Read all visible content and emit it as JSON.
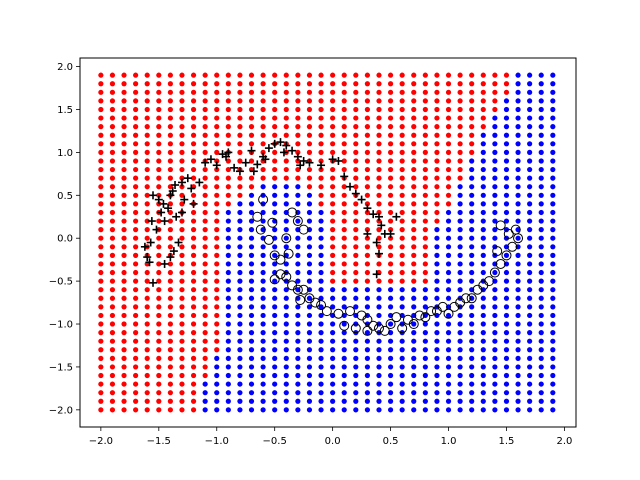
{
  "chart_data": {
    "type": "scatter",
    "title": "",
    "xlabel": "",
    "ylabel": "",
    "xlim": [
      -2.18,
      2.1
    ],
    "ylim": [
      -2.2,
      2.1
    ],
    "x_ticks": [
      -2.0,
      -1.5,
      -1.0,
      -0.5,
      0.0,
      0.5,
      1.0,
      1.5,
      2.0
    ],
    "y_ticks": [
      -2.0,
      -1.5,
      -1.0,
      -0.5,
      0.0,
      0.5,
      1.0,
      1.5,
      2.0
    ],
    "x_tick_labels": [
      "−2.0",
      "−1.5",
      "−1.0",
      "−0.5",
      "0.0",
      "0.5",
      "1.0",
      "1.5",
      "2.0"
    ],
    "y_tick_labels": [
      "−2.0",
      "−1.5",
      "−1.0",
      "−0.5",
      "0.0",
      "0.5",
      "1.0",
      "1.5",
      "2.0"
    ],
    "grid": {
      "x_start": -2.0,
      "x_end": 1.9,
      "x_step": 0.1,
      "y_start": -2.0,
      "y_end": 1.9,
      "y_step": 0.1,
      "class0_color": "#ff0000",
      "class1_color": "#0000ff",
      "boundary_thresholds": [
        {
          "x": -2.0,
          "y": -2.1
        },
        {
          "x": -1.9,
          "y": -2.1
        },
        {
          "x": -1.8,
          "y": -2.1
        },
        {
          "x": -1.7,
          "y": -2.1
        },
        {
          "x": -1.6,
          "y": -2.1
        },
        {
          "x": -1.5,
          "y": -2.1
        },
        {
          "x": -1.4,
          "y": -2.1
        },
        {
          "x": -1.3,
          "y": -2.1
        },
        {
          "x": -1.2,
          "y": -2.0
        },
        {
          "x": -1.1,
          "y": -1.6
        },
        {
          "x": -1.0,
          "y": -1.3
        },
        {
          "x": -0.9,
          "y": 0.4
        },
        {
          "x": -0.8,
          "y": 0.5
        },
        {
          "x": -0.7,
          "y": 0.6
        },
        {
          "x": -0.6,
          "y": 0.7
        },
        {
          "x": -0.5,
          "y": 0.7
        },
        {
          "x": -0.4,
          "y": 0.7
        },
        {
          "x": -0.3,
          "y": 0.7
        },
        {
          "x": -0.2,
          "y": 0.6
        },
        {
          "x": -0.1,
          "y": 0.4
        },
        {
          "x": 0.0,
          "y": -0.5
        },
        {
          "x": 0.1,
          "y": -0.5
        },
        {
          "x": 0.2,
          "y": -0.5
        },
        {
          "x": 0.3,
          "y": -0.5
        },
        {
          "x": 0.4,
          "y": -0.5
        },
        {
          "x": 0.5,
          "y": -0.5
        },
        {
          "x": 0.6,
          "y": -0.5
        },
        {
          "x": 0.7,
          "y": -0.5
        },
        {
          "x": 0.8,
          "y": -0.5
        },
        {
          "x": 0.9,
          "y": 0.2
        },
        {
          "x": 1.0,
          "y": 0.4
        },
        {
          "x": 1.1,
          "y": 0.7
        },
        {
          "x": 1.2,
          "y": 1.0
        },
        {
          "x": 1.3,
          "y": 1.3
        },
        {
          "x": 1.4,
          "y": 1.5
        },
        {
          "x": 1.5,
          "y": 1.7
        },
        {
          "x": 1.6,
          "y": 2.0
        },
        {
          "x": 1.7,
          "y": 2.0
        },
        {
          "x": 1.8,
          "y": 2.0
        },
        {
          "x": 1.9,
          "y": 2.0
        }
      ]
    },
    "series": [
      {
        "marker": "plus",
        "color": "#000000",
        "points": [
          [
            -1.55,
            -0.52
          ],
          [
            -1.58,
            -0.28
          ],
          [
            -1.6,
            -0.22
          ],
          [
            -1.62,
            -0.1
          ],
          [
            -1.57,
            -0.05
          ],
          [
            -1.52,
            0.1
          ],
          [
            -1.56,
            0.2
          ],
          [
            -1.48,
            0.3
          ],
          [
            -1.46,
            0.4
          ],
          [
            -1.4,
            0.5
          ],
          [
            -1.36,
            0.62
          ],
          [
            -1.38,
            0.55
          ],
          [
            -1.3,
            0.65
          ],
          [
            -1.25,
            0.7
          ],
          [
            -1.28,
            0.45
          ],
          [
            -1.22,
            0.58
          ],
          [
            -1.3,
            0.3
          ],
          [
            -1.35,
            0.25
          ],
          [
            -1.33,
            -0.05
          ],
          [
            -1.37,
            -0.15
          ],
          [
            -1.4,
            -0.22
          ],
          [
            -1.45,
            -0.3
          ],
          [
            -1.5,
            0.45
          ],
          [
            -1.42,
            0.35
          ],
          [
            -1.55,
            0.5
          ],
          [
            -1.15,
            0.65
          ],
          [
            -1.1,
            0.88
          ],
          [
            -1.05,
            0.92
          ],
          [
            -1.0,
            0.85
          ],
          [
            -0.95,
            0.98
          ],
          [
            -0.9,
            1.0
          ],
          [
            -0.85,
            0.82
          ],
          [
            -0.8,
            0.78
          ],
          [
            -0.75,
            0.88
          ],
          [
            -0.7,
            1.02
          ],
          [
            -0.65,
            0.86
          ],
          [
            -0.6,
            0.95
          ],
          [
            -0.55,
            1.05
          ],
          [
            -0.5,
            1.1
          ],
          [
            -0.45,
            1.12
          ],
          [
            -0.4,
            1.08
          ],
          [
            -0.35,
            1.02
          ],
          [
            -0.3,
            0.95
          ],
          [
            -0.25,
            0.9
          ],
          [
            -0.2,
            0.88
          ],
          [
            -0.1,
            0.85
          ],
          [
            0.0,
            0.92
          ],
          [
            0.05,
            0.9
          ],
          [
            0.1,
            0.72
          ],
          [
            0.15,
            0.6
          ],
          [
            0.2,
            0.52
          ],
          [
            0.25,
            0.45
          ],
          [
            0.3,
            0.35
          ],
          [
            0.35,
            0.28
          ],
          [
            0.4,
            0.25
          ],
          [
            0.42,
            0.15
          ],
          [
            0.45,
            0.05
          ],
          [
            0.38,
            -0.05
          ],
          [
            0.4,
            -0.18
          ],
          [
            0.38,
            -0.42
          ],
          [
            0.5,
            0.05
          ],
          [
            0.55,
            0.25
          ],
          [
            0.3,
            0.05
          ],
          [
            -0.28,
            0.85
          ],
          [
            -0.42,
            1.0
          ],
          [
            -0.58,
            0.92
          ],
          [
            -0.68,
            0.78
          ],
          [
            -0.92,
            0.95
          ],
          [
            -1.2,
            0.4
          ],
          [
            -1.45,
            0.2
          ]
        ]
      },
      {
        "marker": "circle",
        "color": "#000000",
        "points": [
          [
            -0.6,
            0.45
          ],
          [
            -0.65,
            0.25
          ],
          [
            -0.62,
            0.1
          ],
          [
            -0.55,
            -0.02
          ],
          [
            -0.5,
            -0.2
          ],
          [
            -0.45,
            -0.25
          ],
          [
            -0.52,
            0.18
          ],
          [
            -0.4,
            0.0
          ],
          [
            -0.38,
            -0.18
          ],
          [
            -0.45,
            -0.42
          ],
          [
            -0.5,
            -0.48
          ],
          [
            -0.4,
            -0.45
          ],
          [
            -0.35,
            -0.55
          ],
          [
            -0.3,
            -0.6
          ],
          [
            -0.28,
            -0.72
          ],
          [
            -0.2,
            -0.7
          ],
          [
            -0.15,
            -0.75
          ],
          [
            -0.1,
            -0.78
          ],
          [
            -0.05,
            -0.85
          ],
          [
            0.05,
            -0.88
          ],
          [
            0.1,
            -1.02
          ],
          [
            0.2,
            -1.05
          ],
          [
            0.25,
            -0.9
          ],
          [
            0.3,
            -0.95
          ],
          [
            0.35,
            -1.02
          ],
          [
            0.4,
            -1.05
          ],
          [
            0.45,
            -1.08
          ],
          [
            0.5,
            -1.0
          ],
          [
            0.55,
            -0.92
          ],
          [
            0.6,
            -1.05
          ],
          [
            0.65,
            -0.95
          ],
          [
            0.7,
            -1.0
          ],
          [
            0.75,
            -0.9
          ],
          [
            0.8,
            -0.92
          ],
          [
            0.85,
            -0.85
          ],
          [
            0.9,
            -0.85
          ],
          [
            0.95,
            -0.8
          ],
          [
            1.0,
            -0.88
          ],
          [
            1.05,
            -0.8
          ],
          [
            1.1,
            -0.75
          ],
          [
            1.15,
            -0.7
          ],
          [
            1.2,
            -0.7
          ],
          [
            1.25,
            -0.6
          ],
          [
            1.3,
            -0.55
          ],
          [
            1.35,
            -0.5
          ],
          [
            1.4,
            -0.4
          ],
          [
            1.45,
            -0.3
          ],
          [
            1.5,
            -0.2
          ],
          [
            1.55,
            -0.1
          ],
          [
            1.6,
            0.0
          ],
          [
            1.58,
            0.1
          ],
          [
            1.52,
            0.05
          ],
          [
            1.45,
            0.15
          ],
          [
            1.42,
            -0.15
          ],
          [
            -0.35,
            0.3
          ],
          [
            -0.3,
            0.2
          ],
          [
            -0.25,
            0.1
          ],
          [
            0.15,
            -0.85
          ],
          [
            -0.25,
            -0.6
          ],
          [
            0.3,
            -1.08
          ]
        ]
      }
    ]
  }
}
